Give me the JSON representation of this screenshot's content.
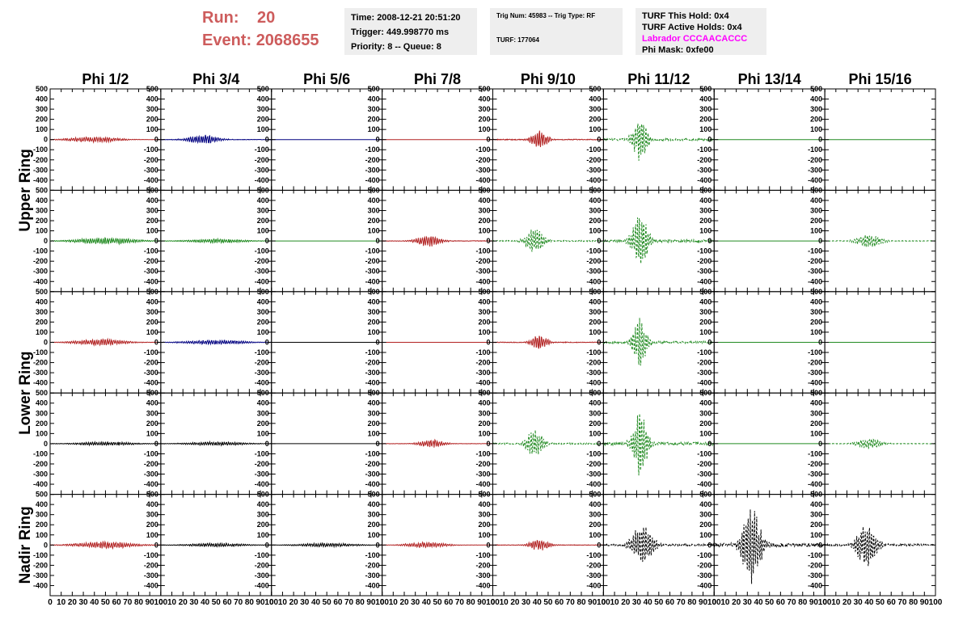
{
  "header": {
    "run_label": "Run:",
    "run_value": "20",
    "event_label": "Event:",
    "event_value": "2068655"
  },
  "info_box_1": {
    "time": "Time: 2008-12-21 20:51:20",
    "trigger": "Trigger: 449.998770 ms",
    "priority": "Priority: 8 -- Queue: 8"
  },
  "info_box_2": {
    "trig_num": "Trig Num: 45983 -- Trig Type: RF",
    "turf": "TURF: 177064"
  },
  "info_box_3": {
    "this_hold": "TURF This Hold: 0x4",
    "active_holds": "TURF Active Holds: 0x4",
    "labrador": "Labrador CCCAACACCC",
    "phi_mask": "Phi Mask: 0xfe00"
  },
  "colors": {
    "red": "#b22222",
    "blue": "#000080",
    "green": "#228b22",
    "black": "#000000",
    "magenta": "#ff00ff",
    "header_red": "#cd5c5c"
  },
  "chart_data": {
    "type": "line",
    "columns": [
      "Phi 1/2",
      "Phi 3/4",
      "Phi 5/6",
      "Phi 7/8",
      "Phi 9/10",
      "Phi 11/12",
      "Phi 13/14",
      "Phi 15/16"
    ],
    "ring_labels": [
      "Upper Ring",
      "Lower Ring",
      "Nadir Ring"
    ],
    "ylim": [
      -500,
      500
    ],
    "xlim": [
      0,
      100
    ],
    "y_ticks": [
      "500",
      "400",
      "300",
      "200",
      "100",
      "0",
      "-100",
      "-200",
      "-300",
      "-400",
      "-500"
    ],
    "x_ticks": [
      "0",
      "10",
      "20",
      "30",
      "40",
      "50",
      "60",
      "70",
      "80",
      "90",
      "100"
    ],
    "rows": [
      {
        "ring": "upper",
        "panels": [
          {
            "color": "red",
            "amp": 30,
            "center": 40,
            "width": 25,
            "style": "solid"
          },
          {
            "color": "blue",
            "amp": 50,
            "center": 38,
            "width": 15,
            "style": "solid"
          },
          {
            "color": "blue",
            "amp": 0,
            "center": 50,
            "width": 10,
            "style": "solid"
          },
          {
            "color": "red",
            "amp": 0,
            "center": 50,
            "width": 10,
            "style": "solid"
          },
          {
            "color": "red",
            "amp": 100,
            "center": 42,
            "width": 8,
            "style": "solid"
          },
          {
            "color": "green",
            "amp": 240,
            "center": 33,
            "width": 7,
            "style": "dashed"
          },
          {
            "color": "green",
            "amp": 0,
            "center": 50,
            "width": 10,
            "style": "solid"
          },
          {
            "color": "green",
            "amp": 0,
            "center": 50,
            "width": 10,
            "style": "solid"
          }
        ]
      },
      {
        "ring": "upper",
        "panels": [
          {
            "color": "green",
            "amp": 35,
            "center": 50,
            "width": 30,
            "style": "solid"
          },
          {
            "color": "green",
            "amp": 20,
            "center": 50,
            "width": 30,
            "style": "solid"
          },
          {
            "color": "green",
            "amp": 0,
            "center": 50,
            "width": 10,
            "style": "solid"
          },
          {
            "color": "red",
            "amp": 60,
            "center": 42,
            "width": 12,
            "style": "solid"
          },
          {
            "color": "green",
            "amp": 130,
            "center": 38,
            "width": 9,
            "style": "dashed"
          },
          {
            "color": "green",
            "amp": 300,
            "center": 33,
            "width": 8,
            "style": "dashed"
          },
          {
            "color": "green",
            "amp": 0,
            "center": 50,
            "width": 10,
            "style": "solid"
          },
          {
            "color": "green",
            "amp": 70,
            "center": 40,
            "width": 12,
            "style": "dashed"
          }
        ]
      },
      {
        "ring": "lower",
        "panels": [
          {
            "color": "red",
            "amp": 35,
            "center": 45,
            "width": 25,
            "style": "solid"
          },
          {
            "color": "blue",
            "amp": 25,
            "center": 50,
            "width": 30,
            "style": "solid"
          },
          {
            "color": "black",
            "amp": 0,
            "center": 50,
            "width": 10,
            "style": "solid"
          },
          {
            "color": "red",
            "amp": 0,
            "center": 50,
            "width": 10,
            "style": "solid"
          },
          {
            "color": "red",
            "amp": 80,
            "center": 42,
            "width": 8,
            "style": "solid"
          },
          {
            "color": "green",
            "amp": 250,
            "center": 33,
            "width": 7,
            "style": "dashed"
          },
          {
            "color": "green",
            "amp": 0,
            "center": 50,
            "width": 10,
            "style": "solid"
          },
          {
            "color": "green",
            "amp": 0,
            "center": 50,
            "width": 10,
            "style": "solid"
          }
        ]
      },
      {
        "ring": "lower",
        "panels": [
          {
            "color": "black",
            "amp": 20,
            "center": 50,
            "width": 30,
            "style": "solid"
          },
          {
            "color": "black",
            "amp": 20,
            "center": 50,
            "width": 30,
            "style": "solid"
          },
          {
            "color": "black",
            "amp": 0,
            "center": 50,
            "width": 10,
            "style": "solid"
          },
          {
            "color": "red",
            "amp": 45,
            "center": 45,
            "width": 12,
            "style": "solid"
          },
          {
            "color": "green",
            "amp": 160,
            "center": 38,
            "width": 8,
            "style": "dashed"
          },
          {
            "color": "green",
            "amp": 350,
            "center": 33,
            "width": 7,
            "style": "dashed"
          },
          {
            "color": "green",
            "amp": 0,
            "center": 50,
            "width": 10,
            "style": "solid"
          },
          {
            "color": "green",
            "amp": 60,
            "center": 40,
            "width": 12,
            "style": "dashed"
          }
        ]
      },
      {
        "ring": "nadir",
        "panels": [
          {
            "color": "red",
            "amp": 35,
            "center": 50,
            "width": 30,
            "style": "solid"
          },
          {
            "color": "black",
            "amp": 20,
            "center": 50,
            "width": 30,
            "style": "solid"
          },
          {
            "color": "black",
            "amp": 20,
            "center": 50,
            "width": 30,
            "style": "solid"
          },
          {
            "color": "red",
            "amp": 30,
            "center": 40,
            "width": 20,
            "style": "solid"
          },
          {
            "color": "red",
            "amp": 60,
            "center": 42,
            "width": 10,
            "style": "solid"
          },
          {
            "color": "black",
            "amp": 230,
            "center": 35,
            "width": 10,
            "style": "dashed"
          },
          {
            "color": "black",
            "amp": 420,
            "center": 34,
            "width": 9,
            "style": "dashed"
          },
          {
            "color": "black",
            "amp": 230,
            "center": 38,
            "width": 10,
            "style": "dashed"
          }
        ]
      }
    ]
  }
}
